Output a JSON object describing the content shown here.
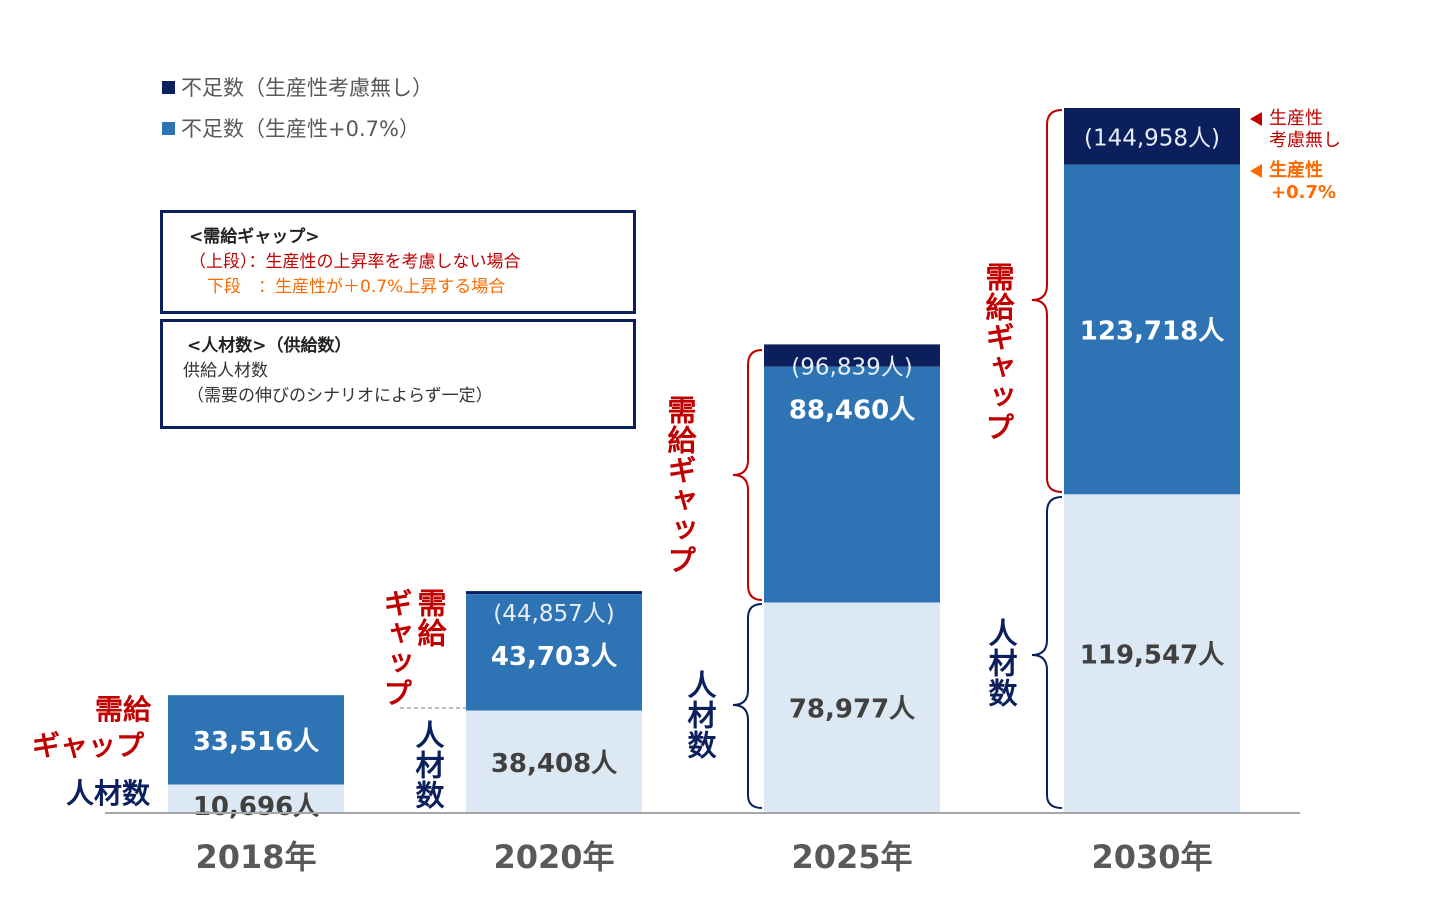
{
  "chart_data": {
    "type": "bar",
    "stacked": true,
    "categories": [
      "2018年",
      "2020年",
      "2025年",
      "2030年"
    ],
    "series": [
      {
        "name": "人材数",
        "values": [
          10696,
          38408,
          78977,
          119547
        ],
        "labels": [
          "10,696人",
          "38,408人",
          "78,977人",
          "119,547人"
        ],
        "color": "#dde8f5"
      },
      {
        "name": "不足数（生産性+0.7%）",
        "values": [
          33516,
          43703,
          88460,
          123718
        ],
        "labels": [
          "33,516人",
          "43,703人",
          "88,460人",
          "123,718人"
        ],
        "color": "#2e74b5"
      },
      {
        "name": "不足数（生産性考慮無し）",
        "totals_gap": [
          null,
          44857,
          96839,
          144958
        ],
        "labels": [
          null,
          "(44,857人)",
          "(96,839人)",
          "(144,958人)"
        ],
        "color": "#0a1f5c"
      }
    ],
    "ylim": [
      0,
      264505
    ],
    "grid": false,
    "legend": "top-left"
  },
  "legend": [
    {
      "label": "不足数（生産性考慮無し）",
      "color": "#0a1f5c"
    },
    {
      "label": "不足数（生産性+0.7%）",
      "color": "#2e74b5"
    }
  ],
  "box1": {
    "title": "<需給ギャップ>",
    "line1": "（上段）：生産性の上昇率を考慮しない場合",
    "line2": "下段　：生産性が＋0.7%上昇する場合"
  },
  "box2": {
    "title": "<人材数>（供給数）",
    "line1": "供給人材数",
    "line2": "（需要の伸びのシナリオによらず一定）"
  },
  "annotations": {
    "gap": "需給ギャップ",
    "gap_a": "需給",
    "gap_b": "ギャップ",
    "supply": "人材数",
    "note1a": "生産性",
    "note1b": "考慮無し",
    "note2a": "生産性",
    "note2b": "+0.7%"
  }
}
